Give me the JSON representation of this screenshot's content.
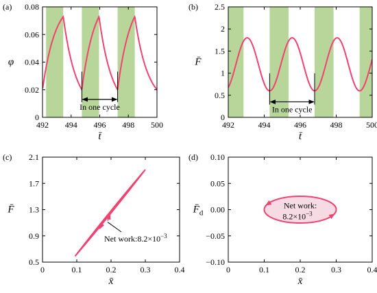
{
  "colors": {
    "curve": "#f0426e",
    "band": "#b8d69a",
    "fill": "#f7dbe4",
    "axis": "#000000"
  },
  "chart_data": [
    {
      "panel_label": "(a)",
      "type": "line",
      "ylabel": "φ",
      "xlabel": "t̄",
      "xlim": [
        492,
        500
      ],
      "ylim": [
        0,
        0.08
      ],
      "xticks": [
        "492",
        "494",
        "496",
        "498",
        "500"
      ],
      "yticks": [
        "0",
        "0.02",
        "0.04",
        "0.06",
        "0.08"
      ],
      "shaded_bands": [
        [
          492.25,
          493.45
        ],
        [
          494.75,
          495.95
        ],
        [
          497.25,
          498.45
        ]
      ],
      "series": [
        {
          "peaks_at": [
            493.45,
            495.95,
            498.45
          ],
          "valleys_at": [
            492.0,
            494.75,
            497.25
          ],
          "peak_value": 0.073,
          "valley_value": 0.02
        }
      ],
      "annotation": {
        "text": "In one cycle",
        "from": 494.75,
        "to": 497.25,
        "y": 0.013
      }
    },
    {
      "panel_label": "(b)",
      "type": "line",
      "ylabel": "F̄",
      "xlabel": "t̄",
      "xlim": [
        492,
        500
      ],
      "ylim": [
        0,
        2.5
      ],
      "xticks": [
        "492",
        "494",
        "496",
        "498",
        "500"
      ],
      "yticks": [
        "0",
        "0.5",
        "1",
        "1.5",
        "2",
        "2.5"
      ],
      "shaded_bands": [
        [
          491.8,
          492.85
        ],
        [
          494.3,
          495.35
        ],
        [
          496.8,
          497.85
        ],
        [
          499.3,
          500.35
        ]
      ],
      "series": [
        {
          "mean": 1.2,
          "amplitude": 0.6,
          "period": 2.5,
          "valley_at": 494.3
        }
      ],
      "annotation": {
        "text": "In one cycle",
        "from": 494.3,
        "to": 496.8,
        "y": 0.35
      }
    },
    {
      "panel_label": "(c)",
      "type": "line",
      "ylabel": "F̄",
      "xlabel": "x̄",
      "xlim": [
        0,
        0.4
      ],
      "ylim": [
        0.5,
        2.1
      ],
      "xticks": [
        "0",
        "0.1",
        "0.2",
        "0.3",
        "0.4"
      ],
      "yticks": [
        "0.5",
        "0.9",
        "1.3",
        "1.7",
        "2.1"
      ],
      "loop": {
        "start": [
          0.095,
          0.59
        ],
        "end": [
          0.3,
          1.91
        ],
        "half_width_y": 0.035
      },
      "annotation": {
        "text": "Net work:8.2×10",
        "exponent": "−3",
        "pointer": [
          0.19,
          1.11
        ]
      }
    },
    {
      "panel_label": "(d)",
      "type": "line",
      "ylabel": "F̄",
      "ylabel_subscript": "d",
      "xlabel": "x̄",
      "xlim": [
        0,
        0.4
      ],
      "ylim": [
        -0.1,
        0.1
      ],
      "xticks": [
        "0",
        "0.1",
        "0.2",
        "0.3",
        "0.4"
      ],
      "yticks": [
        "−0.10",
        "−0.05",
        "0.00",
        "0.05",
        "0.10"
      ],
      "loop": {
        "center": [
          0.2,
          0.0
        ],
        "rx": 0.1,
        "ry": 0.0255
      },
      "annotation": {
        "line1": "Net work:",
        "line2": "8.2×10",
        "exponent": "−3"
      }
    }
  ]
}
